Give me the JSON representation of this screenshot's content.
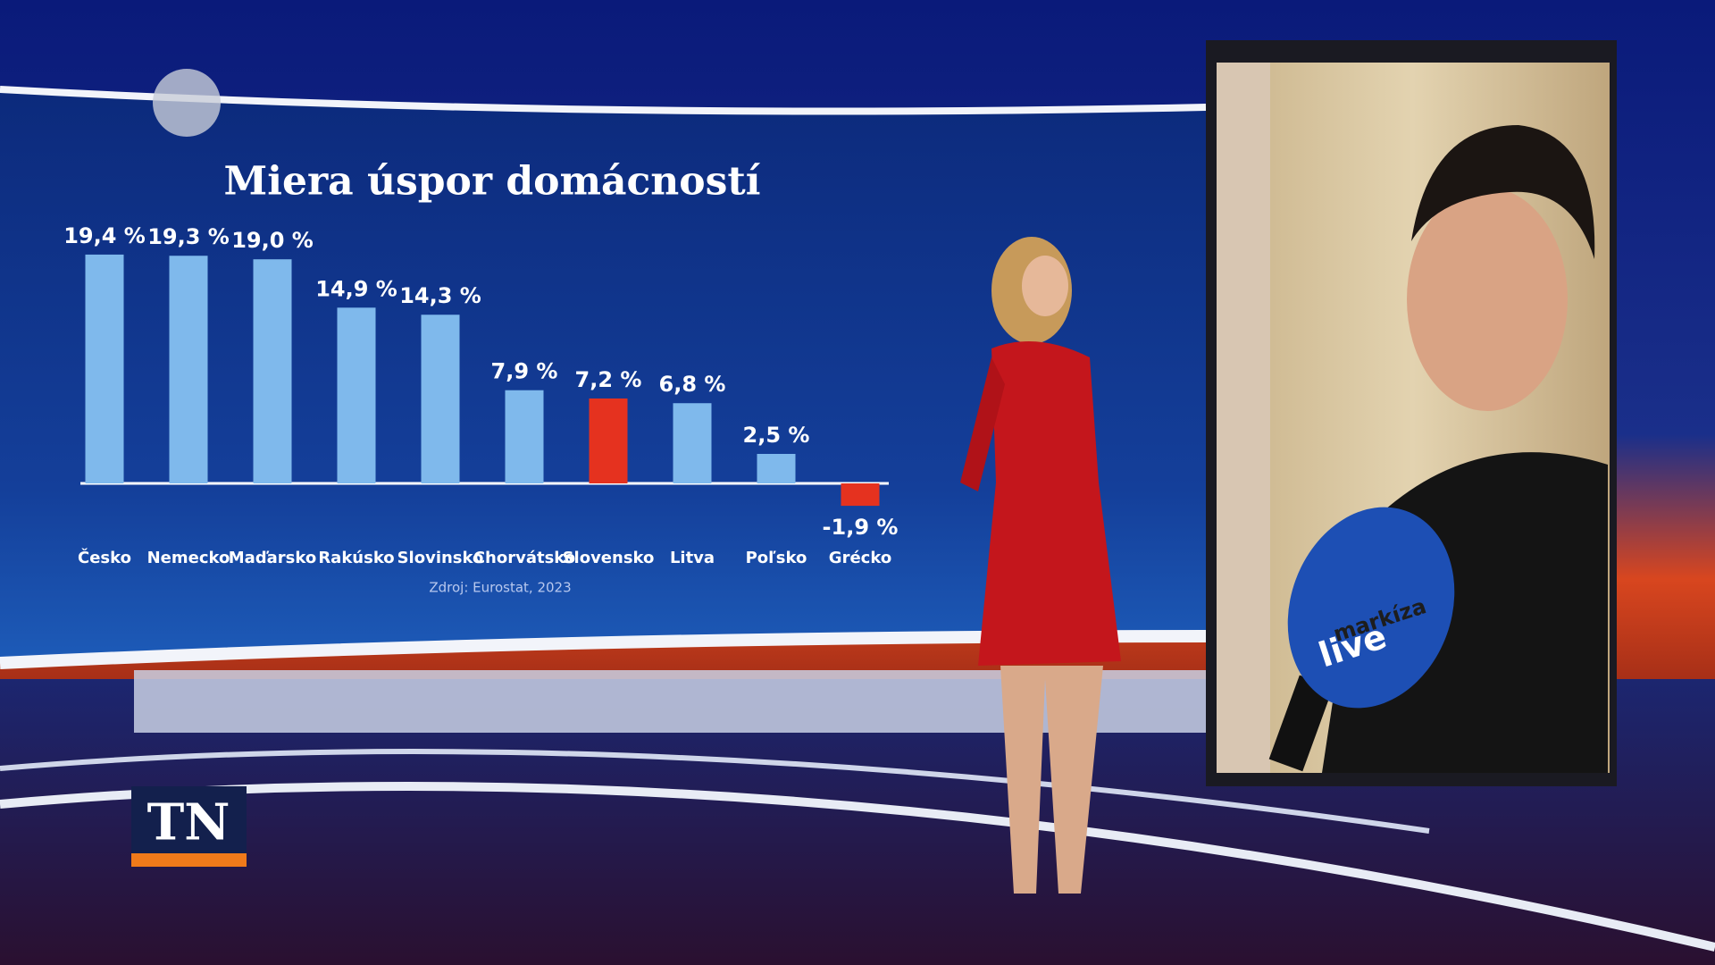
{
  "chart_data": {
    "type": "bar",
    "title": "Miera úspor domácností",
    "categories": [
      "Česko",
      "Nemecko",
      "Maďarsko",
      "Rakúsko",
      "Slovinsko",
      "Chorvátsko",
      "Slovensko",
      "Litva",
      "Poľsko",
      "Grécko"
    ],
    "values": [
      19.4,
      19.3,
      19.0,
      14.9,
      14.3,
      7.9,
      7.2,
      6.8,
      2.5,
      -1.9
    ],
    "value_labels": [
      "19,4 %",
      "19,3 %",
      "19,0 %",
      "14,9 %",
      "14,3 %",
      "7,9 %",
      "7,2 %",
      "6,8 %",
      "2,5 %",
      "-1,9 %"
    ],
    "colors": [
      "#7fb9ec",
      "#7fb9ec",
      "#7fb9ec",
      "#7fb9ec",
      "#7fb9ec",
      "#7fb9ec",
      "#e5321f",
      "#7fb9ec",
      "#7fb9ec",
      "#e5321f"
    ],
    "source": "Zdroj: Eurostat, 2023"
  },
  "logo": "TN",
  "microphone": {
    "brand": "markíza",
    "label": "live"
  }
}
